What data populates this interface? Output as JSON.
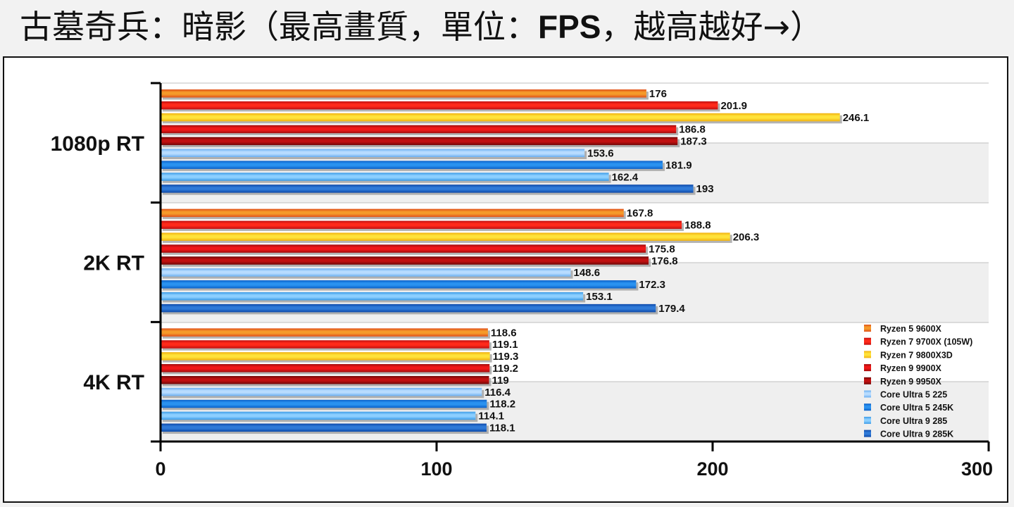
{
  "page_title_parts": [
    "古墓奇兵：暗影（最高畫質，單位：",
    "FPS",
    "，越高越好→）"
  ],
  "colors": {
    "Ryzen 5 9600X": [
      "#f59a2a",
      "#e0501a"
    ],
    "Ryzen 7 9700X (105W)": [
      "#ff2a1a",
      "#c01010"
    ],
    "Ryzen 7 9800X3D": [
      "#ffe23a",
      "#f0b010"
    ],
    "Ryzen 9 9900X": [
      "#f01818",
      "#a00c0c"
    ],
    "Ryzen 9 9950X": [
      "#c01010",
      "#700808"
    ],
    "Core Ultra 5 225": [
      "#b8dcff",
      "#6aaef0"
    ],
    "Core Ultra 5 245K": [
      "#2a92f0",
      "#0a60c8"
    ],
    "Core Ultra 9 285": [
      "#8ccfff",
      "#3a9ae6"
    ],
    "Core Ultra 9 285K": [
      "#2f7ad8",
      "#0c48a8"
    ]
  },
  "chart_data": {
    "type": "bar",
    "orientation": "horizontal",
    "title": "古墓奇兵：暗影（最高畫質，單位：FPS，越高越好→）",
    "categories": [
      "1080p RT",
      "2K RT",
      "4K RT"
    ],
    "xlim": [
      0,
      300
    ],
    "xticks": [
      0,
      100,
      200,
      300
    ],
    "legend_position": "bottom-right",
    "series": [
      {
        "name": "Ryzen 5 9600X",
        "values": [
          176,
          167.8,
          118.6
        ]
      },
      {
        "name": "Ryzen 7 9700X (105W)",
        "values": [
          201.9,
          188.8,
          119.1
        ]
      },
      {
        "name": "Ryzen 7 9800X3D",
        "values": [
          246.1,
          206.3,
          119.3
        ]
      },
      {
        "name": "Ryzen 9 9900X",
        "values": [
          186.8,
          175.8,
          119.2
        ]
      },
      {
        "name": "Ryzen 9 9950X",
        "values": [
          187.3,
          176.8,
          119
        ]
      },
      {
        "name": "Core Ultra 5 225",
        "values": [
          153.6,
          148.6,
          116.4
        ]
      },
      {
        "name": "Core Ultra 5 245K",
        "values": [
          181.9,
          172.3,
          118.2
        ]
      },
      {
        "name": "Core Ultra 9 285",
        "values": [
          162.4,
          153.1,
          114.1
        ]
      },
      {
        "name": "Core Ultra 9 285K",
        "values": [
          193,
          179.4,
          118.1
        ]
      }
    ]
  }
}
